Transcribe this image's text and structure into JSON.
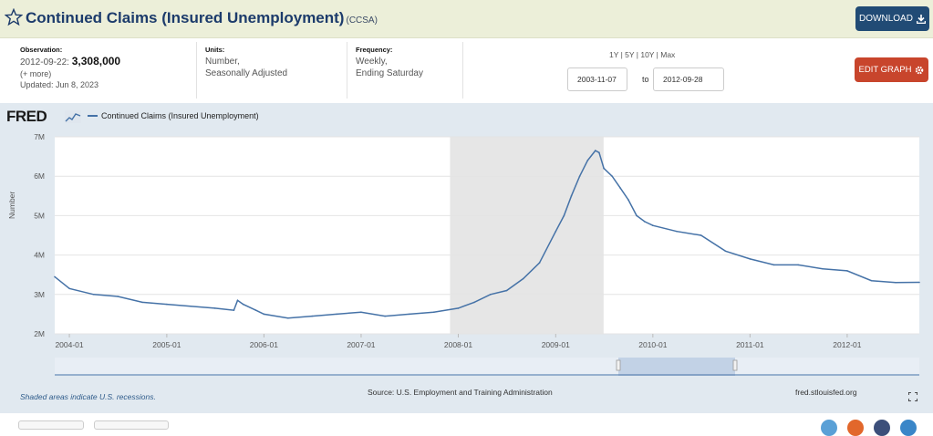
{
  "header": {
    "title": "Continued Claims (Insured Unemployment)",
    "series_code": "(CCSA)",
    "download_label": "DOWNLOAD"
  },
  "meta": {
    "observation_label": "Observation:",
    "observation_date": "2012-09-22:",
    "observation_value": "3,308,000",
    "more": "(+ more)",
    "updated": "Updated: Jun 8, 2023",
    "units_label": "Units:",
    "units_line1": "Number,",
    "units_line2": "Seasonally Adjusted",
    "frequency_label": "Frequency:",
    "frequency_line1": "Weekly,",
    "frequency_line2": "Ending Saturday"
  },
  "controls": {
    "ranges": "1Y | 5Y | 10Y | Max",
    "start_date": "2003-11-07",
    "to_label": "to",
    "end_date": "2012-09-28",
    "edit_label": "EDIT GRAPH"
  },
  "chart_header": {
    "logo": "FRED",
    "legend_label": "Continued Claims (Insured Unemployment)"
  },
  "footer": {
    "recession_note": "Shaded areas indicate U.S. recessions.",
    "source": "Source: U.S. Employment and Training Administration",
    "site": "fred.stlouisfed.org"
  },
  "colors": {
    "line": "#4572a7",
    "recession": "#e6e6e6",
    "header_bg": "#ecefd9",
    "download_btn": "#214b75",
    "edit_btn": "#c8452c"
  },
  "icons": [
    "star-icon",
    "download-icon",
    "gear-icon",
    "fred-graph-icon",
    "fullscreen-icon"
  ],
  "chart_data": {
    "type": "line",
    "ylabel": "Number",
    "xlim": [
      "2003-11-07",
      "2012-09-28"
    ],
    "ylim": [
      2000000,
      7000000
    ],
    "ytick_labels": [
      "2M",
      "3M",
      "4M",
      "5M",
      "6M",
      "7M"
    ],
    "ytick_values": [
      2000000,
      3000000,
      4000000,
      5000000,
      6000000,
      7000000
    ],
    "xtick_labels": [
      "2004-01",
      "2005-01",
      "2006-01",
      "2007-01",
      "2008-01",
      "2009-01",
      "2010-01",
      "2011-01",
      "2012-01"
    ],
    "grid": true,
    "legend": "top-left",
    "recessions": [
      {
        "start": "2007-12-01",
        "end": "2009-06-30"
      }
    ],
    "series": [
      {
        "name": "Continued Claims (Insured Unemployment)",
        "x": [
          "2003-11-07",
          "2004-01-01",
          "2004-04-01",
          "2004-07-01",
          "2004-10-01",
          "2005-01-01",
          "2005-04-01",
          "2005-07-01",
          "2005-09-10",
          "2005-09-24",
          "2005-10-15",
          "2005-12-01",
          "2006-01-01",
          "2006-04-01",
          "2006-07-01",
          "2006-10-01",
          "2007-01-01",
          "2007-04-01",
          "2007-07-01",
          "2007-10-01",
          "2008-01-01",
          "2008-03-01",
          "2008-05-01",
          "2008-07-01",
          "2008-09-01",
          "2008-11-01",
          "2009-01-01",
          "2009-02-01",
          "2009-03-01",
          "2009-04-01",
          "2009-05-01",
          "2009-05-30",
          "2009-06-13",
          "2009-07-01",
          "2009-08-01",
          "2009-09-01",
          "2009-10-01",
          "2009-11-01",
          "2009-12-01",
          "2010-01-01",
          "2010-04-01",
          "2010-07-01",
          "2010-10-01",
          "2011-01-01",
          "2011-04-01",
          "2011-07-01",
          "2011-10-01",
          "2012-01-01",
          "2012-04-01",
          "2012-07-01",
          "2012-09-28"
        ],
        "values": [
          3450000,
          3150000,
          3000000,
          2950000,
          2800000,
          2750000,
          2700000,
          2650000,
          2600000,
          2850000,
          2750000,
          2600000,
          2500000,
          2400000,
          2450000,
          2500000,
          2550000,
          2450000,
          2500000,
          2550000,
          2650000,
          2800000,
          3000000,
          3100000,
          3400000,
          3800000,
          4600000,
          5000000,
          5500000,
          6000000,
          6400000,
          6650000,
          6600000,
          6200000,
          6000000,
          5700000,
          5400000,
          5000000,
          4850000,
          4750000,
          4600000,
          4500000,
          4100000,
          3900000,
          3750000,
          3750000,
          3650000,
          3600000,
          3350000,
          3300000,
          3308000
        ]
      }
    ]
  }
}
